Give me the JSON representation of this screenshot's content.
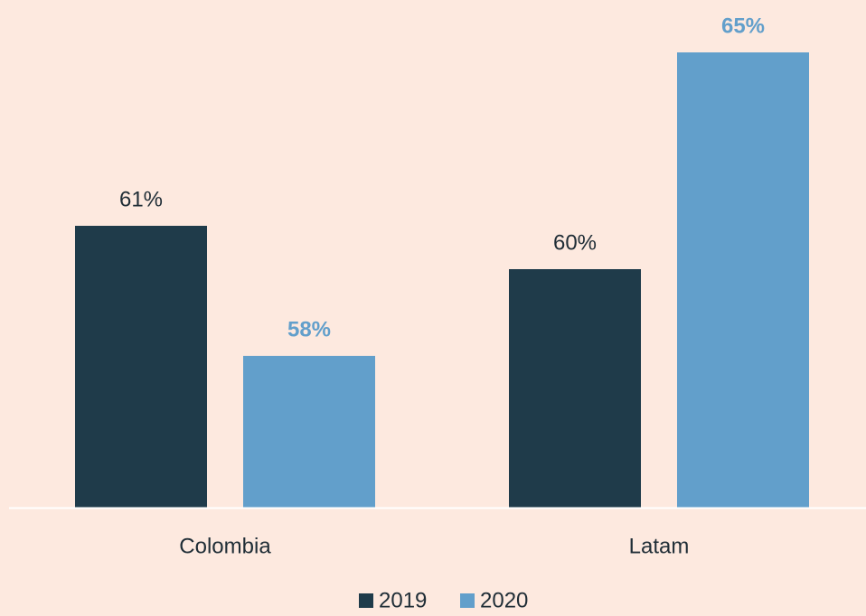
{
  "chart_data": {
    "type": "bar",
    "categories": [
      "Colombia",
      "Latam"
    ],
    "series": [
      {
        "name": "2019",
        "color": "#1f3b4a",
        "values": [
          61,
          60
        ],
        "value_labels": [
          "61%",
          "60%"
        ]
      },
      {
        "name": "2020",
        "color": "#629fcb",
        "values": [
          58,
          65
        ],
        "value_labels": [
          "58%",
          "65%"
        ]
      }
    ],
    "ylim": [
      54.5,
      66
    ]
  }
}
